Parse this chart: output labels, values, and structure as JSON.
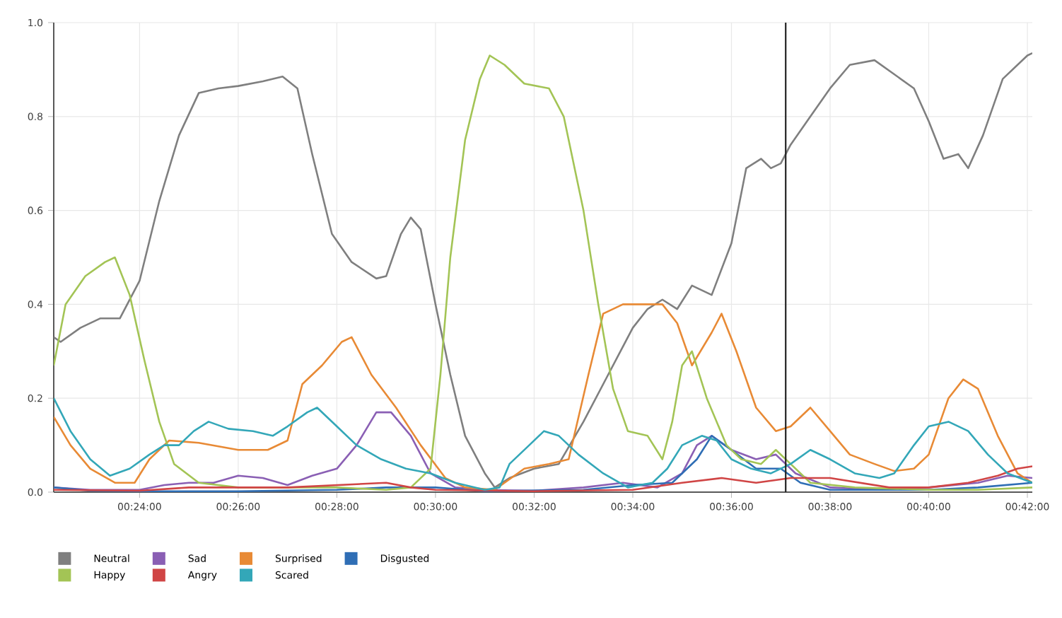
{
  "chart_data": {
    "type": "line",
    "xlim": [
      22.26,
      42.1
    ],
    "ylim": [
      0,
      1
    ],
    "xticks": [
      {
        "value": 24,
        "label": "00:24:00"
      },
      {
        "value": 26,
        "label": "00:26:00"
      },
      {
        "value": 28,
        "label": "00:28:00"
      },
      {
        "value": 30,
        "label": "00:30:00"
      },
      {
        "value": 32,
        "label": "00:32:00"
      },
      {
        "value": 34,
        "label": "00:34:00"
      },
      {
        "value": 36,
        "label": "00:36:00"
      },
      {
        "value": 38,
        "label": "00:38:00"
      },
      {
        "value": 40,
        "label": "00:40:00"
      },
      {
        "value": 42,
        "label": "00:42:00"
      }
    ],
    "yticks": [
      {
        "value": 0,
        "label": "0.0"
      },
      {
        "value": 0.2,
        "label": "0.2"
      },
      {
        "value": 0.4,
        "label": "0.4"
      },
      {
        "value": 0.6,
        "label": "0.6"
      },
      {
        "value": 0.8,
        "label": "0.8"
      },
      {
        "value": 1,
        "label": "1.0"
      }
    ],
    "grid": true,
    "legend": "bottom",
    "marker": "none",
    "line_style": "solid",
    "ref_lines": [
      {
        "axis": "x",
        "value": 37.1,
        "color": "#222222"
      }
    ],
    "series": [
      {
        "name": "Neutral",
        "color": "#7f7f7f",
        "x": [
          22.26,
          22.4,
          22.8,
          23.2,
          23.6,
          24.0,
          24.4,
          24.8,
          25.2,
          25.6,
          26.0,
          26.5,
          26.9,
          27.2,
          27.5,
          27.9,
          28.3,
          28.8,
          29.0,
          29.3,
          29.5,
          29.7,
          30.0,
          30.3,
          30.6,
          31.0,
          31.2,
          31.5,
          32.0,
          32.5,
          33.0,
          33.5,
          34.0,
          34.3,
          34.6,
          34.9,
          35.2,
          35.6,
          36.0,
          36.3,
          36.6,
          36.8,
          37.0,
          37.2,
          37.6,
          38.0,
          38.4,
          38.9,
          39.3,
          39.7,
          40.0,
          40.3,
          40.6,
          40.8,
          41.1,
          41.5,
          42.0,
          42.1
        ],
        "values": [
          0.33,
          0.32,
          0.35,
          0.37,
          0.37,
          0.45,
          0.62,
          0.76,
          0.85,
          0.86,
          0.865,
          0.875,
          0.885,
          0.86,
          0.72,
          0.55,
          0.49,
          0.455,
          0.46,
          0.55,
          0.585,
          0.56,
          0.4,
          0.25,
          0.12,
          0.04,
          0.01,
          0.03,
          0.05,
          0.06,
          0.15,
          0.25,
          0.35,
          0.39,
          0.41,
          0.39,
          0.44,
          0.42,
          0.53,
          0.69,
          0.71,
          0.69,
          0.7,
          0.74,
          0.8,
          0.86,
          0.91,
          0.92,
          0.89,
          0.86,
          0.79,
          0.71,
          0.72,
          0.69,
          0.76,
          0.88,
          0.93,
          0.935
        ]
      },
      {
        "name": "Sad",
        "color": "#8a5fb4",
        "x": [
          22.26,
          23,
          24,
          24.5,
          25,
          25.5,
          26,
          26.5,
          27,
          27.5,
          28.0,
          28.4,
          28.8,
          29.1,
          29.5,
          29.9,
          30.4,
          31,
          32,
          33,
          33.8,
          34.5,
          35.0,
          35.3,
          35.6,
          36.0,
          36.5,
          36.9,
          37.3,
          38,
          39,
          40,
          41,
          41.6,
          42.1
        ],
        "values": [
          0.01,
          0.005,
          0.005,
          0.015,
          0.02,
          0.02,
          0.035,
          0.03,
          0.015,
          0.035,
          0.05,
          0.1,
          0.17,
          0.17,
          0.12,
          0.04,
          0.01,
          0.005,
          0.003,
          0.01,
          0.02,
          0.01,
          0.04,
          0.1,
          0.12,
          0.09,
          0.07,
          0.08,
          0.04,
          0.01,
          0.005,
          0.01,
          0.02,
          0.035,
          0.03
        ]
      },
      {
        "name": "Surprised",
        "color": "#e88a35",
        "x": [
          22.26,
          22.6,
          23,
          23.5,
          23.9,
          24.2,
          24.6,
          25.2,
          26,
          26.6,
          27.0,
          27.3,
          27.7,
          28.1,
          28.3,
          28.7,
          29.2,
          29.7,
          30.2,
          30.6,
          31.2,
          31.4,
          31.8,
          32.3,
          32.7,
          33.1,
          33.4,
          33.8,
          34.2,
          34.6,
          34.9,
          35.2,
          35.6,
          35.8,
          36.1,
          36.5,
          36.9,
          37.2,
          37.6,
          38.0,
          38.4,
          38.9,
          39.3,
          39.7,
          40.0,
          40.4,
          40.7,
          41.0,
          41.4,
          41.8,
          42.1
        ],
        "values": [
          0.16,
          0.1,
          0.05,
          0.02,
          0.02,
          0.07,
          0.11,
          0.105,
          0.09,
          0.09,
          0.11,
          0.23,
          0.27,
          0.32,
          0.33,
          0.25,
          0.18,
          0.1,
          0.03,
          0.01,
          0.005,
          0.02,
          0.05,
          0.06,
          0.07,
          0.25,
          0.38,
          0.4,
          0.4,
          0.4,
          0.36,
          0.27,
          0.34,
          0.38,
          0.3,
          0.18,
          0.13,
          0.14,
          0.18,
          0.13,
          0.08,
          0.06,
          0.045,
          0.05,
          0.08,
          0.2,
          0.24,
          0.22,
          0.12,
          0.04,
          0.02
        ]
      },
      {
        "name": "Disgusted",
        "color": "#2f6eb5",
        "x": [
          22.26,
          23,
          24,
          26,
          28,
          29,
          30,
          31,
          33,
          34,
          34.8,
          35.3,
          35.6,
          36.0,
          36.5,
          37.0,
          37.4,
          38,
          40,
          41,
          42.1
        ],
        "values": [
          0.01,
          0.003,
          0.002,
          0.002,
          0.005,
          0.01,
          0.01,
          0.002,
          0.005,
          0.015,
          0.02,
          0.07,
          0.12,
          0.09,
          0.05,
          0.05,
          0.02,
          0.005,
          0.005,
          0.01,
          0.02
        ]
      },
      {
        "name": "Happy",
        "color": "#a3c455",
        "x": [
          22.26,
          22.5,
          22.9,
          23.3,
          23.5,
          23.8,
          24.1,
          24.4,
          24.7,
          25.2,
          26,
          27,
          28,
          29,
          29.5,
          29.9,
          30.1,
          30.3,
          30.6,
          30.9,
          31.1,
          31.4,
          31.8,
          32.3,
          32.6,
          33.0,
          33.3,
          33.6,
          33.9,
          34.3,
          34.6,
          34.8,
          35.0,
          35.2,
          35.5,
          35.9,
          36.2,
          36.6,
          36.9,
          37.2,
          37.6,
          38.5,
          40,
          41,
          42.1
        ],
        "values": [
          0.27,
          0.4,
          0.46,
          0.49,
          0.5,
          0.42,
          0.28,
          0.15,
          0.06,
          0.02,
          0.01,
          0.01,
          0.01,
          0.005,
          0.01,
          0.05,
          0.25,
          0.5,
          0.75,
          0.88,
          0.93,
          0.91,
          0.87,
          0.86,
          0.8,
          0.6,
          0.4,
          0.22,
          0.13,
          0.12,
          0.07,
          0.15,
          0.27,
          0.3,
          0.2,
          0.1,
          0.07,
          0.06,
          0.09,
          0.06,
          0.02,
          0.01,
          0.005,
          0.005,
          0.01
        ]
      },
      {
        "name": "Angry",
        "color": "#d04545",
        "x": [
          22.26,
          24,
          25,
          26,
          27,
          28,
          29,
          29.5,
          30,
          32,
          34,
          35,
          35.8,
          36.5,
          37.2,
          38,
          38.6,
          39.2,
          40,
          40.8,
          41.4,
          41.8,
          42.1
        ],
        "values": [
          0.005,
          0.003,
          0.01,
          0.01,
          0.01,
          0.015,
          0.02,
          0.01,
          0.005,
          0.002,
          0.005,
          0.02,
          0.03,
          0.02,
          0.03,
          0.03,
          0.02,
          0.01,
          0.01,
          0.02,
          0.035,
          0.05,
          0.055
        ]
      },
      {
        "name": "Scared",
        "color": "#33a7b8",
        "x": [
          22.26,
          22.6,
          23.0,
          23.4,
          23.8,
          24.2,
          24.5,
          24.8,
          25.1,
          25.4,
          25.8,
          26.3,
          26.7,
          27.0,
          27.4,
          27.6,
          28.0,
          28.4,
          28.9,
          29.4,
          29.9,
          30.4,
          31.0,
          31.3,
          31.5,
          31.9,
          32.2,
          32.5,
          32.9,
          33.4,
          33.9,
          34.4,
          34.7,
          35.0,
          35.4,
          35.7,
          36.0,
          36.4,
          36.8,
          37.2,
          37.6,
          38.0,
          38.5,
          39.0,
          39.3,
          39.7,
          40.0,
          40.4,
          40.8,
          41.2,
          41.6,
          42.1
        ],
        "values": [
          0.2,
          0.13,
          0.07,
          0.035,
          0.05,
          0.08,
          0.1,
          0.1,
          0.13,
          0.15,
          0.135,
          0.13,
          0.12,
          0.14,
          0.17,
          0.18,
          0.14,
          0.1,
          0.07,
          0.05,
          0.04,
          0.02,
          0.005,
          0.01,
          0.06,
          0.1,
          0.13,
          0.12,
          0.08,
          0.04,
          0.01,
          0.02,
          0.05,
          0.1,
          0.12,
          0.11,
          0.07,
          0.05,
          0.04,
          0.06,
          0.09,
          0.07,
          0.04,
          0.03,
          0.04,
          0.1,
          0.14,
          0.15,
          0.13,
          0.08,
          0.04,
          0.02
        ]
      }
    ]
  }
}
